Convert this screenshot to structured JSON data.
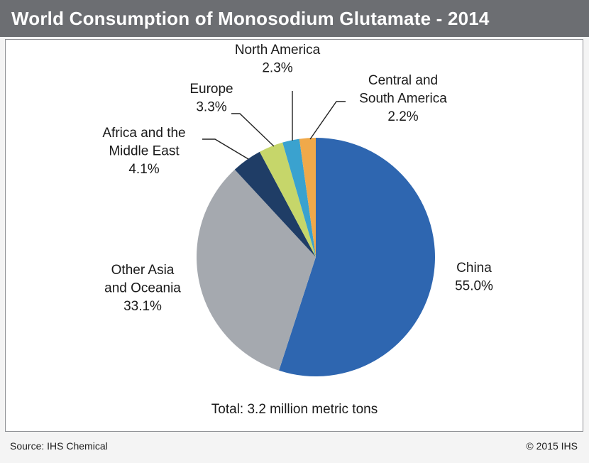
{
  "header": {
    "title": "World Consumption of Monosodium Glutamate - 2014"
  },
  "footer": {
    "source": "Source: IHS Chemical",
    "copyright": "© 2015 IHS"
  },
  "chart_data": {
    "type": "pie",
    "title": "World Consumption of Monosodium Glutamate - 2014",
    "total_note": "Total: 3.2 million metric tons",
    "start_angle_deg": 0,
    "direction": "clockwise",
    "slices": [
      {
        "label_lines": [
          "China"
        ],
        "value_text": "55.0%",
        "value": 55.0,
        "color": "#2e66b0"
      },
      {
        "label_lines": [
          "Other Asia",
          "and Oceania"
        ],
        "value_text": "33.1%",
        "value": 33.1,
        "color": "#a5a9af"
      },
      {
        "label_lines": [
          "Africa and the",
          "Middle East"
        ],
        "value_text": "4.1%",
        "value": 4.1,
        "color": "#1f3d66"
      },
      {
        "label_lines": [
          "Europe"
        ],
        "value_text": "3.3%",
        "value": 3.3,
        "color": "#c6d66a"
      },
      {
        "label_lines": [
          "North America"
        ],
        "value_text": "2.3%",
        "value": 2.3,
        "color": "#3aa2cf"
      },
      {
        "label_lines": [
          "Central and",
          "South America"
        ],
        "value_text": "2.2%",
        "value": 2.2,
        "color": "#f0a94a"
      }
    ]
  }
}
